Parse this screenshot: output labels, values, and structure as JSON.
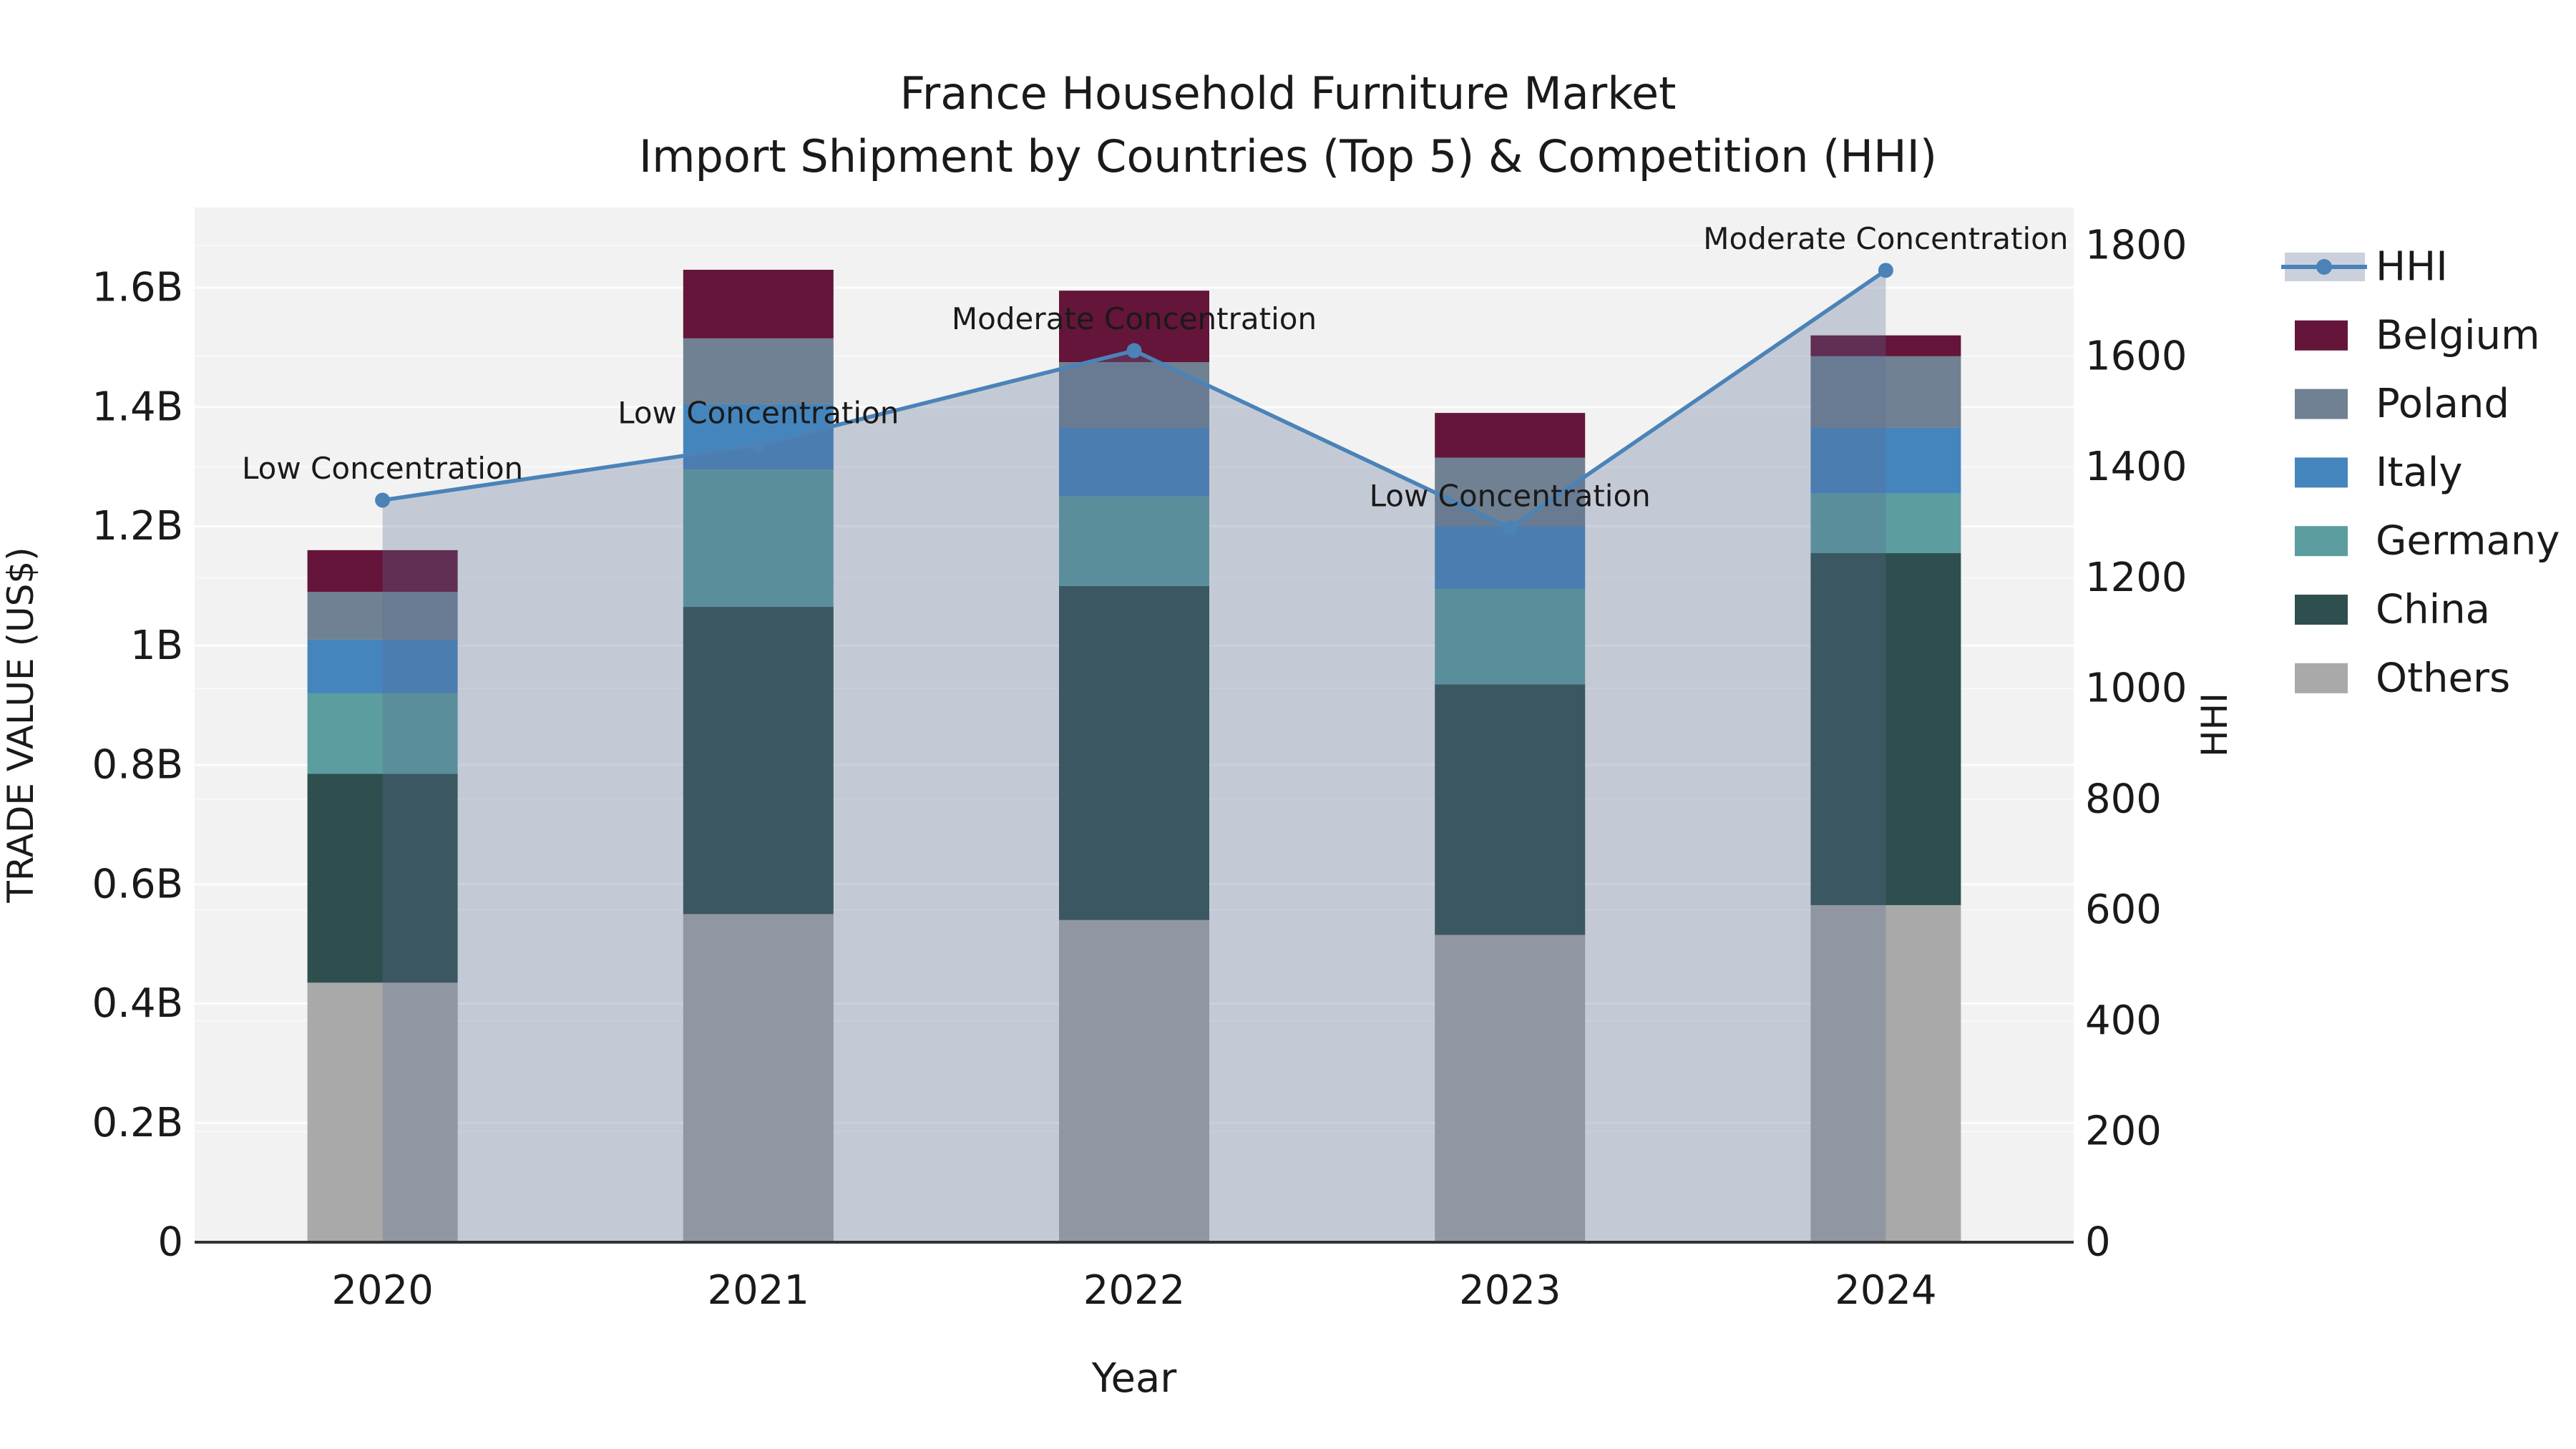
{
  "title": {
    "line1": "France Household Furniture Market",
    "line2": "Import Shipment by Countries (Top 5) & Competition (HHI)"
  },
  "chart_data": {
    "type": "stacked-bar+line",
    "categories": [
      "2020",
      "2021",
      "2022",
      "2023",
      "2024"
    ],
    "xlabel": "Year",
    "left_axis": {
      "label": "TRADE VALUE (US$)",
      "tick_labels": [
        "0",
        "0.2B",
        "0.4B",
        "0.6B",
        "0.8B",
        "1B",
        "1.2B",
        "1.4B",
        "1.6B"
      ],
      "tick_values": [
        0,
        0.2,
        0.4,
        0.6,
        0.8,
        1.0,
        1.2,
        1.4,
        1.6
      ],
      "max": 1.6,
      "unit": "billions USD"
    },
    "right_axis": {
      "label": "HHI",
      "tick_values": [
        0,
        200,
        400,
        600,
        800,
        1000,
        1200,
        1400,
        1600,
        1800
      ],
      "max": 1800
    },
    "series": [
      {
        "name": "Others",
        "color": "#A9A9A9",
        "values": [
          0.435,
          0.55,
          0.54,
          0.515,
          0.565
        ]
      },
      {
        "name": "China",
        "color": "#2E4F4E",
        "values": [
          0.35,
          0.515,
          0.56,
          0.42,
          0.59
        ]
      },
      {
        "name": "Germany",
        "color": "#5C9DA0",
        "values": [
          0.135,
          0.23,
          0.15,
          0.16,
          0.1
        ]
      },
      {
        "name": "Italy",
        "color": "#4585BD",
        "values": [
          0.09,
          0.11,
          0.115,
          0.105,
          0.11
        ]
      },
      {
        "name": "Poland",
        "color": "#6F8192",
        "values": [
          0.08,
          0.11,
          0.11,
          0.115,
          0.12
        ]
      },
      {
        "name": "Belgium",
        "color": "#641539",
        "values": [
          0.07,
          0.115,
          0.12,
          0.075,
          0.035
        ]
      }
    ],
    "totals": [
      1.16,
      1.63,
      1.595,
      1.39,
      1.52
    ],
    "hhi_line": {
      "name": "HHI",
      "color": "#4B83B8",
      "area_fill": "rgba(90,110,145,0.30)",
      "legend_band_color": "#CBD1DC",
      "values": [
        1340,
        1440,
        1610,
        1290,
        1755
      ],
      "annotations": [
        "Low Concentration",
        "Low Concentration",
        "Moderate Concentration",
        "Low Concentration",
        "Moderate Concentration"
      ]
    },
    "legend": {
      "position": "right",
      "entries": [
        "HHI",
        "Belgium",
        "Poland",
        "Italy",
        "Germany",
        "China",
        "Others"
      ]
    },
    "plot_background": "#F2F2F2",
    "gridline_color": "#FFFFFF",
    "grid": true
  }
}
